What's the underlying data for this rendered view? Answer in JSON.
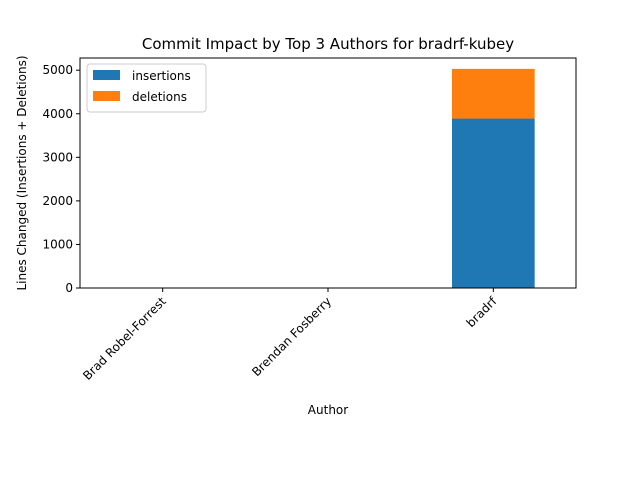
{
  "chart_data": {
    "type": "bar",
    "stacked": true,
    "title": "Commit Impact by Top 3 Authors for bradrf-kubey",
    "xlabel": "Author",
    "ylabel": "Lines Changed (Insertions + Deletions)",
    "categories": [
      "Brad Robel-Forrest",
      "Brendan Fosberry",
      "bradrf"
    ],
    "series": [
      {
        "name": "insertions",
        "color": "#1f77b4",
        "values": [
          0,
          0,
          3890
        ]
      },
      {
        "name": "deletions",
        "color": "#ff7f0e",
        "values": [
          0,
          0,
          1140
        ]
      }
    ],
    "ylim": [
      0,
      5280
    ],
    "yticks": [
      0,
      1000,
      2000,
      3000,
      4000,
      5000
    ],
    "grid": false,
    "legend_position": "top-left"
  }
}
